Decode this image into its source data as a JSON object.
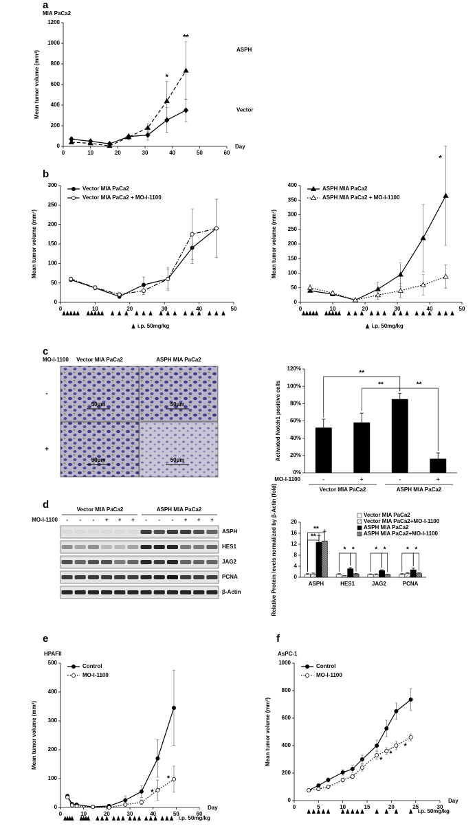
{
  "panel_labels": [
    "a",
    "b",
    "c",
    "d",
    "e",
    "f"
  ],
  "chart_data": [
    {
      "type": "line",
      "title": "MIA PaCa2",
      "ylabel": "Mean tumor volume (mm³)",
      "xlabel": "Day",
      "legend": "direct",
      "x": [
        3,
        10,
        17,
        24,
        31,
        38,
        45
      ],
      "xlim": [
        0,
        60
      ],
      "xticks": [
        0,
        10,
        20,
        30,
        40,
        50,
        60
      ],
      "ylim": [
        0,
        1200
      ],
      "yticks": [
        0,
        200,
        400,
        600,
        800,
        1000,
        1200
      ],
      "series": [
        {
          "name": "ASPH",
          "color": "#000000",
          "linestyle": "dashed",
          "marker": "triangle",
          "values": [
            40,
            30,
            5,
            90,
            180,
            440,
            735
          ],
          "errors": [
            10,
            10,
            5,
            20,
            40,
            190,
            280
          ]
        },
        {
          "name": "Vector",
          "color": "#000000",
          "linestyle": "solid",
          "marker": "diamond",
          "values": [
            70,
            50,
            25,
            95,
            110,
            255,
            350
          ],
          "errors": [
            15,
            10,
            10,
            30,
            50,
            120,
            110
          ]
        }
      ],
      "annotations": [
        "*",
        "**"
      ]
    },
    {
      "type": "line",
      "ylabel": "Mean tumor volume (mm³)",
      "legend": "upper left",
      "x": [
        3,
        10,
        17,
        24,
        31,
        38,
        45
      ],
      "xlim": [
        0,
        50
      ],
      "xticks": [
        0,
        10,
        20,
        30,
        40,
        50
      ],
      "ylim": [
        0,
        300
      ],
      "yticks": [
        0,
        50,
        100,
        150,
        200,
        250,
        300
      ],
      "series": [
        {
          "name": "Vector MIA PaCa2",
          "color": "#000000",
          "linestyle": "solid",
          "marker": "circle",
          "values": [
            58,
            37,
            15,
            45,
            60,
            140,
            190
          ],
          "errors": [
            5,
            5,
            5,
            20,
            30,
            40,
            75
          ]
        },
        {
          "name": "Vector MIA PaCa2 + MO-I-1100",
          "color": "#000000",
          "linestyle": "dashdot",
          "marker": "open-circle",
          "values": [
            60,
            38,
            20,
            30,
            60,
            175,
            190
          ],
          "errors": [
            5,
            5,
            5,
            10,
            25,
            65,
            75
          ]
        }
      ],
      "dose_days": [
        1,
        2,
        3,
        4,
        5,
        8,
        9,
        10,
        11,
        12,
        15,
        17,
        19,
        22,
        24,
        26,
        29,
        31,
        33,
        36,
        38,
        40,
        43,
        45,
        47
      ],
      "dose_label": "i.p. 50mg/kg"
    },
    {
      "type": "line",
      "ylabel": "Mean tumor volume (mm³)",
      "legend": "upper left",
      "x": [
        3,
        10,
        17,
        24,
        31,
        38,
        45
      ],
      "xlim": [
        0,
        50
      ],
      "xticks": [
        0,
        10,
        20,
        30,
        40,
        50
      ],
      "ylim": [
        0,
        400
      ],
      "yticks": [
        0,
        50,
        100,
        150,
        200,
        250,
        300,
        350,
        400
      ],
      "series": [
        {
          "name": "ASPH MIA PaCa2",
          "color": "#000000",
          "linestyle": "solid",
          "marker": "triangle",
          "values": [
            40,
            28,
            8,
            45,
            95,
            220,
            365
          ],
          "errors": [
            5,
            5,
            3,
            25,
            40,
            115,
            170
          ]
        },
        {
          "name": "ASPH MIA PaCa2 + MO-I-1100",
          "color": "#000000",
          "linestyle": "dotted",
          "marker": "open-triangle",
          "values": [
            50,
            32,
            8,
            25,
            40,
            60,
            88
          ],
          "errors": [
            10,
            5,
            3,
            15,
            25,
            35,
            40
          ]
        }
      ],
      "dose_days": [
        1,
        2,
        3,
        4,
        5,
        8,
        9,
        10,
        11,
        12,
        15,
        17,
        19,
        22,
        24,
        26,
        29,
        31,
        33,
        36,
        38,
        40,
        43,
        45,
        47
      ],
      "dose_label": "i.p. 50mg/kg",
      "annotations": [
        "*"
      ]
    },
    {
      "type": "bar",
      "ylabel": "Activated Notch1 positive cells",
      "category_label": "MO-I-1100",
      "categories": [
        "-",
        "+",
        "-",
        "+"
      ],
      "groups": [
        "Vector MIA PaCa2",
        "ASPH MIA PaCa2"
      ],
      "values": [
        52,
        58,
        85,
        16
      ],
      "errors": [
        10,
        11,
        7,
        7
      ],
      "color": "#000000",
      "ylim": [
        0,
        120
      ],
      "yticks": [
        {
          "value": 0,
          "label": "0%"
        },
        {
          "value": 20,
          "label": "20%"
        },
        {
          "value": 40,
          "label": "40%"
        },
        {
          "value": 60,
          "label": "60%"
        },
        {
          "value": 80,
          "label": "80%"
        },
        {
          "value": 100,
          "label": "100%"
        },
        {
          "value": 120,
          "label": "120%"
        }
      ],
      "annotations": [
        "**",
        "**",
        "**"
      ]
    },
    {
      "type": "bar",
      "ylabel": "Relative Protein levels normalized by β-Actin (fold)",
      "legend": "upper right",
      "categories": [
        "ASPH",
        "HES1",
        "JAG2",
        "PCNA"
      ],
      "ylim": [
        0,
        20
      ],
      "yticks": [
        0,
        4,
        8,
        12,
        16,
        20
      ],
      "series": [
        {
          "name": "Vector MIA PaCa2",
          "color": "#ffffff",
          "values": [
            1,
            1,
            1,
            1
          ],
          "errors": [
            0.3,
            0.3,
            0.2,
            0.3
          ]
        },
        {
          "name": "Vector MIA PaCa2+MO-I-1100",
          "color": "#bbbbbb",
          "pattern": "hatch",
          "values": [
            1.1,
            0.5,
            1.0,
            1.3
          ],
          "errors": [
            0.4,
            0.1,
            0.2,
            0.3
          ]
        },
        {
          "name": "ASPH MIA PaCa2",
          "color": "#000000",
          "values": [
            12.7,
            3.1,
            2.4,
            2.7
          ],
          "errors": [
            2.5,
            0.4,
            0.3,
            0.6
          ]
        },
        {
          "name": "ASPH MIA PaCa2+MO-I-1100",
          "color": "#999999",
          "pattern": "cross",
          "values": [
            13.2,
            1.2,
            1.0,
            1.3
          ],
          "errors": [
            3.5,
            0.2,
            0.1,
            0.3
          ]
        }
      ],
      "annotations": [
        "**",
        "**",
        "*",
        "*",
        "*",
        "*",
        "*",
        "*"
      ]
    },
    {
      "type": "line",
      "title": "HPAFII",
      "ylabel": "Mean tumor volume (mm³)",
      "xlabel": "Day",
      "legend": "upper left",
      "x": [
        3,
        5,
        7,
        14,
        21,
        28,
        35,
        42,
        49
      ],
      "xlim": [
        0,
        60
      ],
      "xticks": [
        0,
        10,
        20,
        30,
        40,
        50,
        60
      ],
      "ylim": [
        0,
        500
      ],
      "yticks": [
        0,
        100,
        200,
        300,
        400,
        500
      ],
      "series": [
        {
          "name": "Control",
          "color": "#000000",
          "linestyle": "solid",
          "marker": "circle",
          "values": [
            40,
            12,
            10,
            2,
            5,
            25,
            55,
            170,
            345
          ],
          "errors": [
            5,
            3,
            3,
            2,
            5,
            15,
            20,
            65,
            130
          ]
        },
        {
          "name": "MO-I-1100",
          "color": "#000000",
          "linestyle": "dotted",
          "marker": "open-circle",
          "values": [
            35,
            8,
            5,
            2,
            0,
            10,
            18,
            60,
            98
          ],
          "errors": [
            5,
            3,
            3,
            2,
            2,
            5,
            8,
            35,
            45
          ]
        }
      ],
      "dose_days": [
        2,
        3,
        4,
        5,
        9,
        10,
        11,
        12,
        16,
        18,
        20,
        23,
        25,
        27,
        30,
        32,
        34,
        37,
        39,
        41,
        44,
        46,
        48
      ],
      "dose_label": "i.p. 50mg/kg",
      "annotations": [
        "*",
        "*"
      ]
    },
    {
      "type": "line",
      "title": "AsPC-1",
      "ylabel": "Mean tumor volume (mm³)",
      "xlabel": "Day",
      "legend": "upper left",
      "x": [
        3,
        5,
        7,
        10,
        12,
        14,
        17,
        19,
        21,
        24
      ],
      "xlim": [
        0,
        30
      ],
      "xticks": [
        0,
        5,
        10,
        15,
        20,
        25,
        30
      ],
      "ylim": [
        0,
        1000
      ],
      "yticks": [
        0,
        200,
        400,
        600,
        800,
        1000
      ],
      "series": [
        {
          "name": "Control",
          "color": "#000000",
          "linestyle": "solid",
          "marker": "circle",
          "values": [
            75,
            110,
            150,
            205,
            230,
            300,
            400,
            525,
            650,
            735
          ],
          "errors": [
            5,
            10,
            15,
            20,
            25,
            30,
            40,
            60,
            60,
            80
          ]
        },
        {
          "name": "MO-I-1100",
          "color": "#000000",
          "linestyle": "dotted",
          "marker": "open-circle",
          "values": [
            75,
            85,
            100,
            150,
            175,
            240,
            330,
            360,
            400,
            460
          ],
          "errors": [
            5,
            10,
            10,
            15,
            15,
            25,
            30,
            25,
            30,
            25
          ]
        }
      ],
      "dose_days": [
        3,
        4,
        5,
        6,
        7,
        10,
        11,
        12,
        13,
        14,
        17,
        19,
        21,
        24
      ],
      "dose_label": "i.p. 50mg/kg",
      "annotations": [
        "*",
        "*",
        "*"
      ]
    }
  ],
  "micrographs": {
    "row_label": "MO-I-1100",
    "columns": [
      "Vector MIA PaCa2",
      "ASPH MIA PaCa2"
    ],
    "rows": [
      "-",
      "+"
    ],
    "scale_bar": "50µm"
  },
  "blot": {
    "groups": [
      "Vector MIA PaCa2",
      "ASPH MIA PaCa2"
    ],
    "treatment_label": "MO-I-1100",
    "treatment": [
      "-",
      "-",
      "-",
      "+",
      "+",
      "+",
      "-",
      "-",
      "-",
      "+",
      "+",
      "+"
    ],
    "proteins": [
      "ASPH",
      "HES1",
      "JAG2",
      "PCNA",
      "β-Actin"
    ]
  }
}
